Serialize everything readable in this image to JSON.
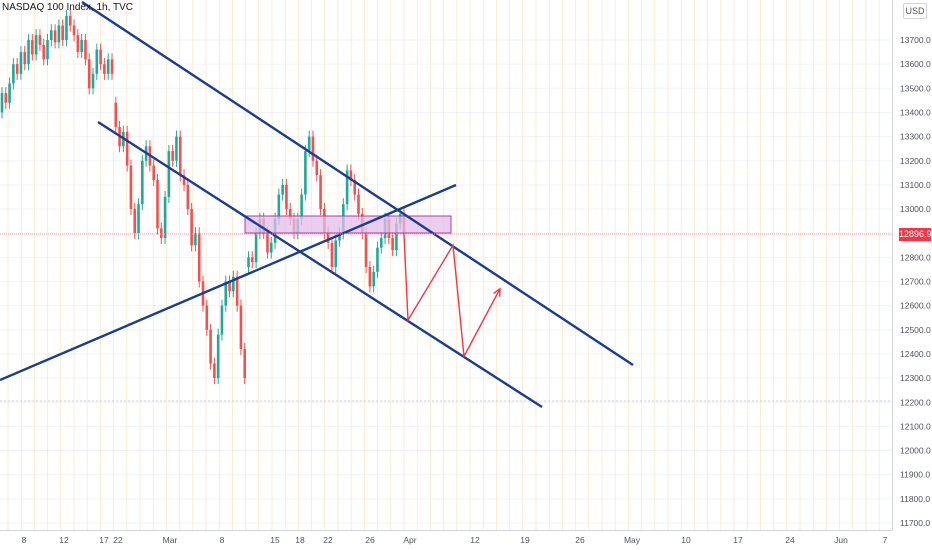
{
  "header": {
    "title": "NASDAQ 100 Index, 1h, TVC"
  },
  "price_axis": {
    "currency": "USD",
    "last_price": "12896.9"
  },
  "colors": {
    "up": "#26a69a",
    "down": "#ef5350",
    "trendline": "#1a3d8f",
    "projection": "#f23645",
    "zone_fill": "#e1bee7",
    "zone_border": "#b03ab0",
    "grid": "#f0f3fa",
    "grid_month": "#fbe3b8"
  },
  "chart_data": {
    "type": "candlestick",
    "title": "NASDAQ 100 Index, 1h, TVC",
    "ylim": [
      11650,
      13870
    ],
    "y_ticks": [
      11700,
      11800,
      11900,
      12000,
      12100,
      12200,
      12300,
      12400,
      12500,
      12600,
      12700,
      12800,
      12900,
      13000,
      13100,
      13200,
      13300,
      13400,
      13500,
      13600,
      13700
    ],
    "y_tick_labels": [
      "11700.0",
      "11800.0",
      "11900.0",
      "12000.0",
      "12100.0",
      "12200.0",
      "12300.0",
      "12400.0",
      "12500.0",
      "12600.0",
      "12700.0",
      "12800.0",
      "12900.0",
      "13000.0",
      "13100.0",
      "13200.0",
      "13300.0",
      "13400.0",
      "13500.0",
      "13600.0",
      "13700.0"
    ],
    "x_tick_labels": [
      "8",
      "12",
      "17",
      "22",
      "Mar",
      "8",
      "15",
      "18",
      "22",
      "26",
      "Apr",
      "12",
      "19",
      "26",
      "May",
      "10",
      "17",
      "24",
      "Jun",
      "7"
    ],
    "last_price": 12896.9,
    "candles": [
      [
        13400,
        13480
      ],
      [
        13480,
        13440
      ],
      [
        13440,
        13520
      ],
      [
        13520,
        13600
      ],
      [
        13600,
        13560
      ],
      [
        13560,
        13650
      ],
      [
        13650,
        13600
      ],
      [
        13600,
        13700
      ],
      [
        13700,
        13640
      ],
      [
        13640,
        13720
      ],
      [
        13720,
        13680
      ],
      [
        13680,
        13620
      ],
      [
        13620,
        13700
      ],
      [
        13700,
        13740
      ],
      [
        13740,
        13690
      ],
      [
        13690,
        13760
      ],
      [
        13760,
        13700
      ],
      [
        13700,
        13800
      ],
      [
        13800,
        13760
      ],
      [
        13760,
        13720
      ],
      [
        13720,
        13650
      ],
      [
        13650,
        13700
      ],
      [
        13700,
        13620
      ],
      [
        13620,
        13500
      ],
      [
        13500,
        13560
      ],
      [
        13560,
        13660
      ],
      [
        13660,
        13600
      ],
      [
        13600,
        13560
      ],
      [
        13560,
        13620
      ],
      [
        13620,
        13560
      ],
      [
        13440,
        13340
      ],
      [
        13340,
        13260
      ],
      [
        13260,
        13320
      ],
      [
        13320,
        13180
      ],
      [
        13180,
        13000
      ],
      [
        13000,
        12900
      ],
      [
        12900,
        13020
      ],
      [
        13020,
        13200
      ],
      [
        13200,
        13260
      ],
      [
        13260,
        13180
      ],
      [
        13180,
        13120
      ],
      [
        13120,
        12920
      ],
      [
        12920,
        12880
      ],
      [
        12880,
        13050
      ],
      [
        13050,
        13240
      ],
      [
        13240,
        13200
      ],
      [
        13200,
        13300
      ],
      [
        13300,
        13140
      ],
      [
        13140,
        13100
      ],
      [
        13100,
        13000
      ],
      [
        13000,
        12850
      ],
      [
        12850,
        12900
      ],
      [
        12900,
        12700
      ],
      [
        12700,
        12600
      ],
      [
        12600,
        12500
      ],
      [
        12500,
        12360
      ],
      [
        12360,
        12300
      ],
      [
        12300,
        12480
      ],
      [
        12480,
        12600
      ],
      [
        12600,
        12700
      ],
      [
        12700,
        12660
      ],
      [
        12660,
        12720
      ],
      [
        12720,
        12600
      ],
      [
        12600,
        12420
      ],
      [
        12420,
        12300
      ],
      [
        12760,
        12800
      ],
      [
        12800,
        12780
      ],
      [
        12780,
        12900
      ],
      [
        12900,
        12960
      ],
      [
        12960,
        12900
      ],
      [
        12900,
        12820
      ],
      [
        12820,
        12860
      ],
      [
        12860,
        12960
      ],
      [
        12960,
        13060
      ],
      [
        13060,
        13100
      ],
      [
        13100,
        13000
      ],
      [
        13000,
        12960
      ],
      [
        12960,
        12900
      ],
      [
        12900,
        12960
      ],
      [
        12960,
        13060
      ],
      [
        13060,
        13240
      ],
      [
        13240,
        13300
      ],
      [
        13300,
        13200
      ],
      [
        13200,
        13140
      ],
      [
        13140,
        13000
      ],
      [
        13000,
        12900
      ],
      [
        12900,
        12860
      ],
      [
        12860,
        12760
      ],
      [
        12760,
        12870
      ],
      [
        12870,
        12900
      ],
      [
        12900,
        13020
      ],
      [
        13020,
        13160
      ],
      [
        13160,
        13120
      ],
      [
        13120,
        13060
      ],
      [
        13060,
        12980
      ],
      [
        12980,
        12900
      ],
      [
        12900,
        12760
      ],
      [
        12760,
        12680
      ],
      [
        12680,
        12740
      ],
      [
        12740,
        12840
      ],
      [
        12840,
        12880
      ],
      [
        12880,
        12960
      ],
      [
        12960,
        12880
      ],
      [
        12880,
        12830
      ],
      [
        12830,
        12940
      ],
      [
        12940,
        12980
      ],
      [
        12980,
        12896
      ]
    ],
    "projection_path": [
      [
        12895,
        0
      ],
      [
        12540,
        1
      ],
      [
        12850,
        2
      ],
      [
        12390,
        3
      ],
      [
        12670,
        4
      ]
    ],
    "grid": true
  }
}
